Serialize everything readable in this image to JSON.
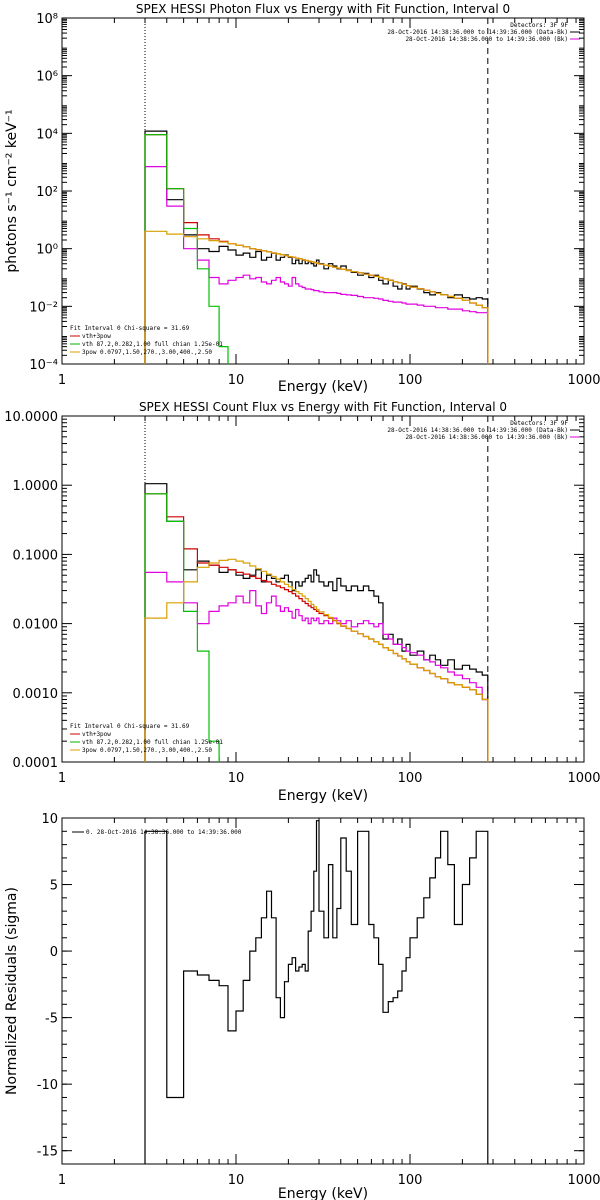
{
  "chart_data": [
    {
      "type": "line",
      "title": "SPEX HESSI Photon Flux vs Energy with Fit Function, Interval 0",
      "xlabel": "Energy (keV)",
      "ylabel": "photons s⁻¹ cm⁻² keV⁻¹",
      "xscale": "log",
      "yscale": "log",
      "xlim": [
        1,
        1000
      ],
      "ylim": [
        0.0001,
        100000000
      ],
      "grid": false,
      "xticks": [
        "1",
        "10",
        "100",
        "1000"
      ],
      "yticks": [
        {
          "value": 0.0001,
          "label": "10⁻⁴"
        },
        {
          "value": 0.01,
          "label": "10⁻²"
        },
        {
          "value": 1,
          "label": "10⁰"
        },
        {
          "value": 100,
          "label": "10²"
        },
        {
          "value": 10000,
          "label": "10⁴"
        },
        {
          "value": 1000000,
          "label": "10⁶"
        },
        {
          "value": 100000000,
          "label": "10⁸"
        }
      ],
      "vlines": [
        {
          "x": 3,
          "style": "dotted"
        },
        {
          "x": 280,
          "style": "dashed"
        }
      ],
      "header": [
        "Detectors: 3F 9F",
        "28-Oct-2016 14:38:36.000 to 14:39:36.000 (Data-Bk)",
        "28-Oct-2016 14:38:36.000 to 14:39:36.000 (Bk)"
      ],
      "legend": {
        "lines": [
          "Fit Interval 0   Chi-square = 31.69",
          "vth+3pow",
          "vth 87.2,0.282,1.00  full chian 1.25e-01",
          "3pow 0.0797,1.50,270.,3.00,400.,2.50"
        ],
        "colors": [
          "#000000",
          "#d00000",
          "#00b000",
          "#d8a000"
        ]
      },
      "edges": [
        3,
        4,
        5,
        6,
        7,
        8,
        9,
        10,
        11,
        12,
        13,
        14,
        15,
        16,
        17,
        18,
        19,
        20,
        21,
        22,
        23,
        24,
        25,
        26,
        27,
        28,
        29,
        30,
        32,
        34,
        36,
        38,
        40,
        43,
        46,
        50,
        54,
        58,
        62,
        66,
        70,
        75,
        80,
        85,
        90,
        95,
        100,
        110,
        120,
        130,
        140,
        150,
        165,
        180,
        200,
        220,
        240,
        260,
        280
      ],
      "series": [
        {
          "name": "Data-Bk",
          "color": "#000000",
          "values": [
            12000,
            50,
            3,
            1.0,
            0.8,
            1.2,
            0.9,
            0.6,
            0.7,
            0.5,
            0.8,
            0.4,
            0.5,
            0.7,
            0.4,
            0.5,
            0.6,
            0.5,
            0.3,
            0.4,
            0.3,
            0.4,
            0.3,
            0.35,
            0.3,
            0.25,
            0.4,
            0.3,
            0.2,
            0.3,
            0.25,
            0.2,
            0.25,
            0.18,
            0.15,
            0.12,
            0.14,
            0.1,
            0.12,
            0.08,
            0.06,
            0.08,
            0.05,
            0.04,
            0.06,
            0.04,
            0.05,
            0.04,
            0.03,
            0.025,
            0.03,
            0.025,
            0.02,
            0.025,
            0.02,
            0.018,
            0.02,
            0.018
          ]
        },
        {
          "name": "Bk",
          "color": "#e000e0",
          "values": [
            700,
            30,
            1.0,
            0.4,
            0.1,
            0.06,
            0.08,
            0.1,
            0.12,
            0.09,
            0.1,
            0.07,
            0.06,
            0.08,
            0.1,
            0.07,
            0.06,
            0.05,
            0.1,
            0.06,
            0.05,
            0.045,
            0.04,
            0.04,
            0.038,
            0.035,
            0.035,
            0.032,
            0.03,
            0.03,
            0.03,
            0.028,
            0.026,
            0.025,
            0.024,
            0.022,
            0.02,
            0.02,
            0.019,
            0.018,
            0.016,
            0.015,
            0.014,
            0.014,
            0.013,
            0.012,
            0.012,
            0.011,
            0.01,
            0.01,
            0.009,
            0.009,
            0.008,
            0.008,
            0.007,
            0.0065,
            0.006,
            0.006
          ]
        },
        {
          "name": "vth+3pow",
          "color": "#d00000",
          "values": [
            9000,
            120,
            8,
            3,
            2.2,
            1.8,
            1.5,
            1.3,
            1.15,
            1.0,
            0.92,
            0.84,
            0.77,
            0.71,
            0.66,
            0.61,
            0.57,
            0.53,
            0.5,
            0.47,
            0.44,
            0.41,
            0.39,
            0.37,
            0.35,
            0.33,
            0.31,
            0.29,
            0.27,
            0.25,
            0.23,
            0.21,
            0.195,
            0.175,
            0.16,
            0.145,
            0.13,
            0.12,
            0.11,
            0.1,
            0.09,
            0.08,
            0.072,
            0.065,
            0.058,
            0.052,
            0.046,
            0.041,
            0.036,
            0.032,
            0.028,
            0.025,
            0.022,
            0.019,
            0.016,
            0.013,
            0.011,
            0.009
          ]
        },
        {
          "name": "vth",
          "color": "#00c000",
          "values": [
            9000,
            120,
            5,
            0.2,
            0.01,
            0.0004
          ]
        },
        {
          "name": "3pow",
          "color": "#d8a000",
          "values": [
            4,
            3.2,
            2.6,
            2.2,
            1.9,
            1.7,
            1.5,
            1.3,
            1.15,
            1.0,
            0.92,
            0.84,
            0.77,
            0.71,
            0.66,
            0.61,
            0.57,
            0.53,
            0.5,
            0.47,
            0.44,
            0.41,
            0.39,
            0.37,
            0.35,
            0.33,
            0.31,
            0.29,
            0.27,
            0.25,
            0.23,
            0.21,
            0.195,
            0.175,
            0.16,
            0.145,
            0.13,
            0.12,
            0.11,
            0.1,
            0.09,
            0.08,
            0.072,
            0.065,
            0.058,
            0.052,
            0.046,
            0.041,
            0.036,
            0.032,
            0.028,
            0.025,
            0.022,
            0.019,
            0.016,
            0.013,
            0.011,
            0.009
          ]
        }
      ]
    },
    {
      "type": "line",
      "title": "SPEX HESSI Count Flux vs Energy with Fit Function, Interval 0",
      "xlabel": "Energy (keV)",
      "ylabel": "",
      "xscale": "log",
      "yscale": "log",
      "xlim": [
        1,
        1000
      ],
      "ylim": [
        0.0001,
        10
      ],
      "grid": false,
      "xticks": [
        "1",
        "10",
        "100",
        "1000"
      ],
      "yticks": [
        {
          "value": 0.0001,
          "label": "0.0001"
        },
        {
          "value": 0.001,
          "label": "0.0010"
        },
        {
          "value": 0.01,
          "label": "0.0100"
        },
        {
          "value": 0.1,
          "label": "0.1000"
        },
        {
          "value": 1,
          "label": "1.0000"
        },
        {
          "value": 10,
          "label": "10.0000"
        }
      ],
      "vlines": [
        {
          "x": 3,
          "style": "dotted"
        },
        {
          "x": 280,
          "style": "dashed"
        }
      ],
      "header": [
        "Detectors: 3F 9F",
        "28-Oct-2016 14:38:36.000 to 14:39:36.000 (Data-Bk)",
        "28-Oct-2016 14:38:36.000 to 14:39:36.000 (Bk)"
      ],
      "legend": {
        "lines": [
          "Fit Interval 0   Chi-square = 31.69",
          "vth+3pow",
          "vth 87.2,0.282,1.00  full chian 1.25e-01",
          "3pow 0.0797,1.50,270.,3.00,400.,2.50"
        ],
        "colors": [
          "#000000",
          "#d00000",
          "#00b000",
          "#d8a000"
        ]
      },
      "edges": [
        3,
        4,
        5,
        6,
        7,
        8,
        9,
        10,
        11,
        12,
        13,
        14,
        15,
        16,
        17,
        18,
        19,
        20,
        21,
        22,
        23,
        24,
        25,
        26,
        27,
        28,
        29,
        30,
        32,
        34,
        36,
        38,
        40,
        43,
        46,
        50,
        54,
        58,
        62,
        66,
        70,
        75,
        80,
        85,
        90,
        95,
        100,
        110,
        120,
        130,
        140,
        150,
        165,
        180,
        200,
        220,
        240,
        260,
        280
      ],
      "series": [
        {
          "name": "Data-Bk",
          "color": "#000000",
          "values": [
            1.05,
            0.3,
            0.06,
            0.08,
            0.07,
            0.055,
            0.06,
            0.05,
            0.045,
            0.05,
            0.06,
            0.04,
            0.05,
            0.045,
            0.04,
            0.045,
            0.05,
            0.04,
            0.03,
            0.04,
            0.035,
            0.04,
            0.045,
            0.05,
            0.04,
            0.06,
            0.05,
            0.04,
            0.035,
            0.04,
            0.03,
            0.045,
            0.035,
            0.03,
            0.035,
            0.03,
            0.035,
            0.03,
            0.025,
            0.02,
            0.006,
            0.007,
            0.005,
            0.006,
            0.004,
            0.005,
            0.0035,
            0.004,
            0.003,
            0.0035,
            0.003,
            0.0025,
            0.003,
            0.0022,
            0.0025,
            0.0022,
            0.002,
            0.0018
          ]
        },
        {
          "name": "Bk",
          "color": "#e000e0",
          "values": [
            0.055,
            0.04,
            0.02,
            0.01,
            0.015,
            0.018,
            0.02,
            0.025,
            0.02,
            0.03,
            0.018,
            0.014,
            0.02,
            0.025,
            0.018,
            0.015,
            0.017,
            0.015,
            0.012,
            0.016,
            0.013,
            0.011,
            0.012,
            0.01,
            0.012,
            0.011,
            0.012,
            0.01,
            0.011,
            0.01,
            0.012,
            0.011,
            0.01,
            0.011,
            0.009,
            0.01,
            0.011,
            0.01,
            0.009,
            0.01,
            0.007,
            0.006,
            0.005,
            0.005,
            0.0045,
            0.004,
            0.0038,
            0.0035,
            0.003,
            0.0028,
            0.0025,
            0.0023,
            0.002,
            0.0018,
            0.0016,
            0.0014,
            0.0012,
            0.0008
          ]
        },
        {
          "name": "vth+3pow",
          "color": "#d00000",
          "values": [
            0.75,
            0.35,
            0.12,
            0.075,
            0.07,
            0.065,
            0.06,
            0.055,
            0.052,
            0.048,
            0.045,
            0.042,
            0.04,
            0.037,
            0.035,
            0.033,
            0.031,
            0.029,
            0.027,
            0.025,
            0.023,
            0.021,
            0.0195,
            0.018,
            0.017,
            0.016,
            0.015,
            0.014,
            0.013,
            0.012,
            0.011,
            0.01,
            0.0092,
            0.0085,
            0.0078,
            0.0071,
            0.0065,
            0.006,
            0.0055,
            0.005,
            0.0045,
            0.0041,
            0.0037,
            0.0034,
            0.0031,
            0.0028,
            0.0026,
            0.0023,
            0.0021,
            0.0019,
            0.0017,
            0.0016,
            0.0014,
            0.0013,
            0.0012,
            0.0011,
            0.00095,
            0.0008
          ]
        },
        {
          "name": "vth",
          "color": "#00c000",
          "values": [
            0.75,
            0.3,
            0.015,
            0.004,
            0.0002,
            5e-05
          ]
        },
        {
          "name": "3pow",
          "color": "#d8a000",
          "values": [
            0.012,
            0.02,
            0.04,
            0.065,
            0.075,
            0.082,
            0.085,
            0.08,
            0.075,
            0.068,
            0.062,
            0.057,
            0.052,
            0.048,
            0.044,
            0.04,
            0.037,
            0.034,
            0.031,
            0.029,
            0.027,
            0.025,
            0.023,
            0.021,
            0.019,
            0.0175,
            0.016,
            0.0148,
            0.0135,
            0.0123,
            0.0112,
            0.0102,
            0.0093,
            0.0085,
            0.0078,
            0.0071,
            0.0065,
            0.006,
            0.0055,
            0.005,
            0.0045,
            0.0041,
            0.0037,
            0.0034,
            0.0031,
            0.0028,
            0.0026,
            0.0023,
            0.0021,
            0.0019,
            0.0017,
            0.0016,
            0.0014,
            0.0013,
            0.0012,
            0.0011,
            0.00095,
            0.0008
          ]
        }
      ]
    },
    {
      "type": "line",
      "title": "",
      "xlabel": "Energy (keV)",
      "ylabel": "Normalized Residuals (sigma)",
      "xscale": "log",
      "yscale": "linear",
      "xlim": [
        1,
        1000
      ],
      "ylim": [
        -16,
        10
      ],
      "grid": false,
      "xticks": [
        "1",
        "10",
        "100",
        "1000"
      ],
      "yticks": [
        {
          "value": -15,
          "label": "-15"
        },
        {
          "value": -10,
          "label": "-10"
        },
        {
          "value": -5,
          "label": "-5"
        },
        {
          "value": 0,
          "label": "0"
        },
        {
          "value": 5,
          "label": "5"
        },
        {
          "value": 10,
          "label": "10"
        }
      ],
      "legend": {
        "lines": [
          "0. 28-Oct-2016 14:38:36.000 to 14:39:36.000"
        ],
        "colors": [
          "#000000"
        ]
      },
      "edges": [
        3,
        4,
        5,
        6,
        7,
        8,
        9,
        10,
        11,
        12,
        13,
        14,
        15,
        16,
        17,
        18,
        19,
        20,
        21,
        22,
        23,
        24,
        25,
        26,
        27,
        28,
        29,
        30,
        32,
        34,
        36,
        38,
        40,
        43,
        46,
        50,
        54,
        58,
        62,
        66,
        70,
        75,
        80,
        85,
        90,
        95,
        100,
        110,
        120,
        130,
        140,
        150,
        165,
        180,
        200,
        220,
        240,
        260,
        280
      ],
      "series": [
        {
          "name": "0. 28-Oct-2016 14:38:36.000 to 14:39:36.000",
          "color": "#000000",
          "values": [
            9,
            -11,
            -1.5,
            -1.8,
            -2.2,
            -2.6,
            -6,
            -4.5,
            -2.2,
            0,
            1,
            2.5,
            4.5,
            2.5,
            -3.5,
            -5,
            -2.3,
            -1,
            -0.5,
            -1.5,
            -1.2,
            -1,
            -1.5,
            1.5,
            3,
            6,
            9.8,
            3,
            1,
            6.5,
            1,
            3.2,
            8.5,
            6,
            2,
            9,
            9,
            2,
            1,
            -1,
            -4.6,
            -3.8,
            -3.5,
            -3,
            -1.5,
            -0.5,
            1,
            2.5,
            4,
            5.5,
            7,
            9,
            6.5,
            2,
            5,
            7,
            9,
            9
          ]
        }
      ]
    }
  ]
}
